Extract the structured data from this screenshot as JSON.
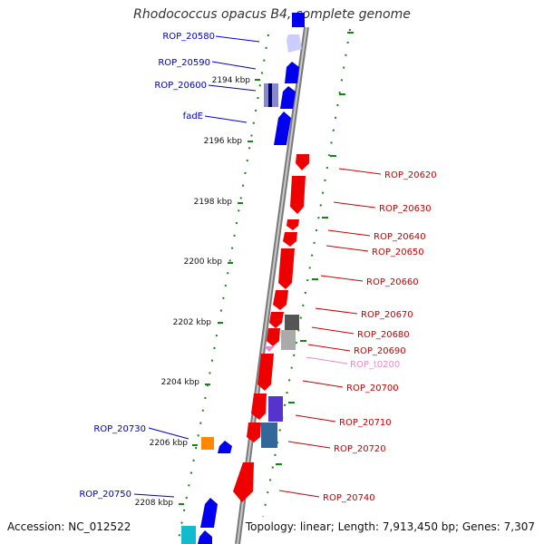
{
  "title": "Rhodococcus opacus B4, complete genome",
  "footer": {
    "accession": "Accession: NC_012522",
    "summary": "Topology: linear; Length: 7,913,450 bp; Genes: 7,307"
  },
  "colors": {
    "axis": "#888888",
    "ticks": "#118811",
    "left_label": "#0000cc",
    "right_label": "#cc0000",
    "rna_label": "#ee88cc"
  },
  "kbp_labels": [
    "2194 kbp",
    "2196 kbp",
    "2198 kbp",
    "2200 kbp",
    "2202 kbp",
    "2204 kbp",
    "2206 kbp",
    "2208 kbp"
  ],
  "left_genes": [
    "ROP_20580",
    "ROP_20590",
    "ROP_20600",
    "fadE",
    "ROP_20730",
    "ROP_20750"
  ],
  "right_genes": [
    "ROP_20620",
    "ROP_20630",
    "ROP_20640",
    "ROP_20650",
    "ROP_20660",
    "ROP_20670",
    "ROP_20680",
    "ROP_20690",
    "ROP_t0200",
    "ROP_20700",
    "ROP_20710",
    "ROP_20720",
    "ROP_20740"
  ]
}
